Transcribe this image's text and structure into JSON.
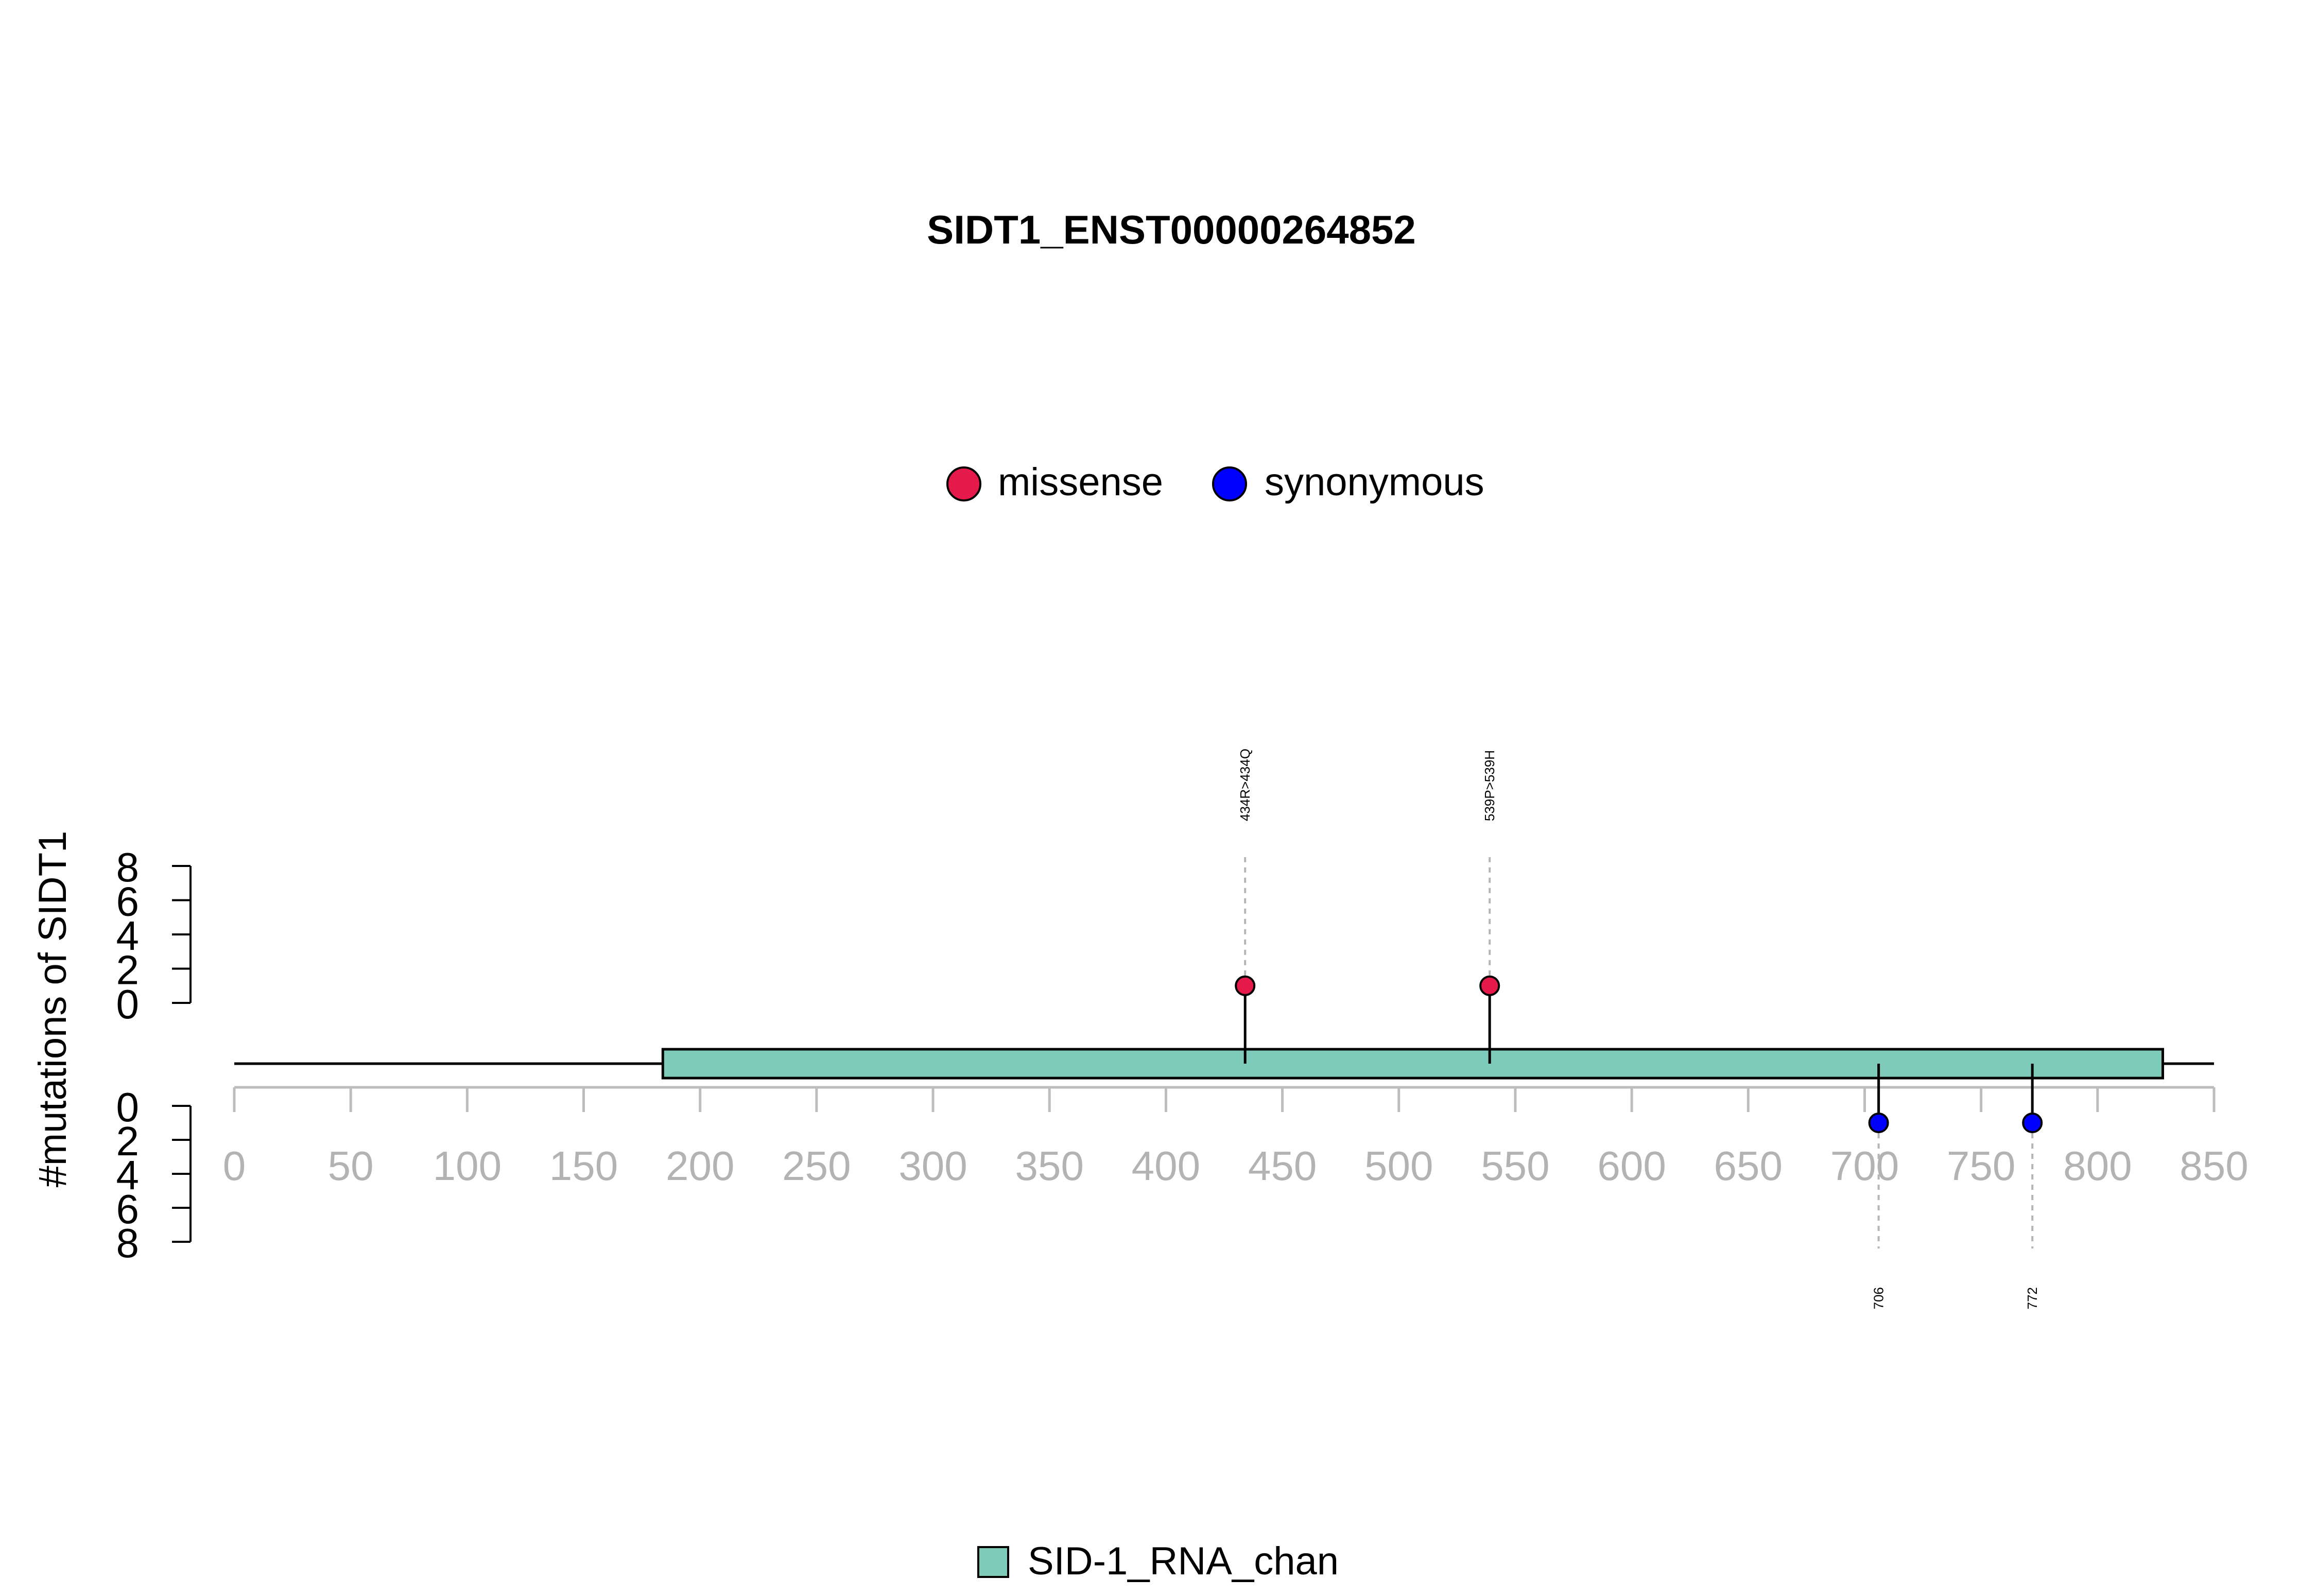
{
  "chart_data": {
    "type": "lollipop",
    "title": "SIDT1_ENST00000264852",
    "ylabel": "#mutations of SIDT1",
    "xlim": [
      0,
      850
    ],
    "x_ticks": [
      0,
      50,
      100,
      150,
      200,
      250,
      300,
      350,
      400,
      450,
      500,
      550,
      600,
      650,
      700,
      750,
      800,
      850
    ],
    "y_ticks": [
      0,
      2,
      4,
      6,
      8
    ],
    "ylim": [
      0,
      8
    ],
    "protein_length": 850,
    "legend": [
      {
        "label": "missense",
        "color": "#e6194b"
      },
      {
        "label": "synonymous",
        "color": "#0000ff"
      }
    ],
    "domains": [
      {
        "name": "SID-1_RNA_chan",
        "start": 184,
        "end": 828,
        "color": "#7fcbba"
      }
    ],
    "mutations_top": [
      {
        "position": 434,
        "count": 1,
        "type": "missense",
        "label": "434R>434Q",
        "color": "#e6194b"
      },
      {
        "position": 539,
        "count": 1,
        "type": "missense",
        "label": "539P>539H",
        "color": "#e6194b"
      }
    ],
    "mutations_bottom": [
      {
        "position": 706,
        "count": 1,
        "type": "synonymous",
        "label": "706",
        "color": "#0000ff"
      },
      {
        "position": 772,
        "count": 1,
        "type": "synonymous",
        "label": "772",
        "color": "#0000ff"
      }
    ]
  }
}
